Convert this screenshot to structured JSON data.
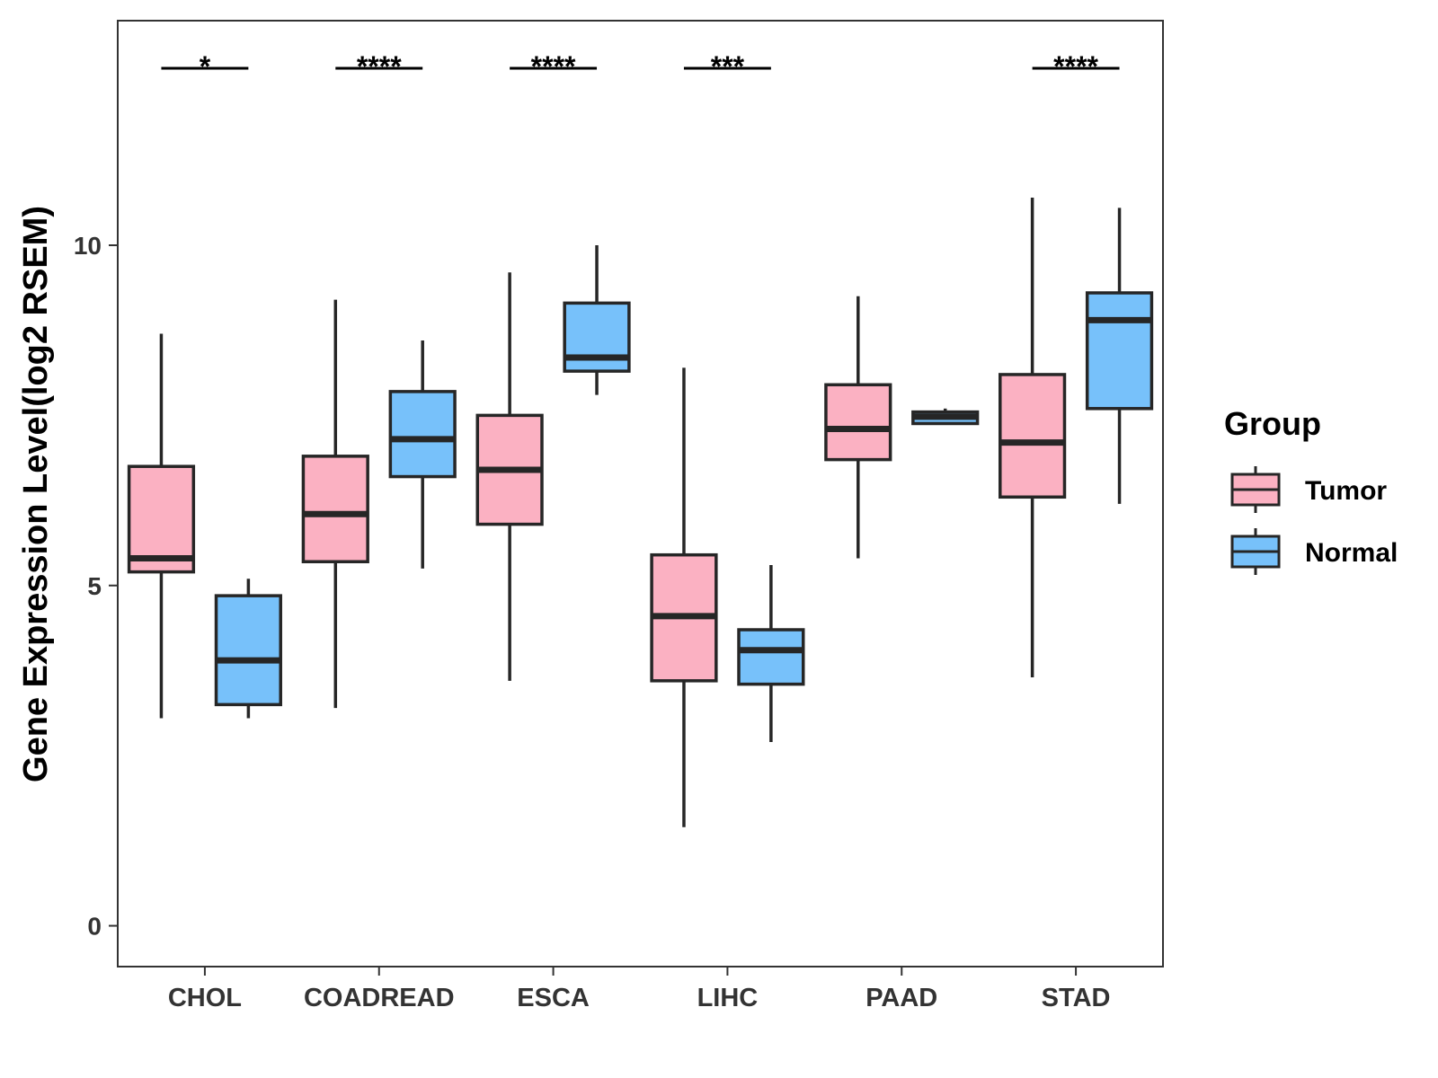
{
  "chart_data": {
    "type": "boxplot",
    "title": "",
    "xlabel": "",
    "ylabel": "Gene Expression Level(log2 RSEM)",
    "ylim": [
      -0.6,
      13.3
    ],
    "yticks": [
      0,
      5,
      10
    ],
    "grid": false,
    "legend": {
      "title": "Group",
      "placement": "right",
      "entries": [
        "Tumor",
        "Normal"
      ]
    },
    "colors": {
      "Tumor": "#FBB1C2",
      "Normal": "#77C1FA",
      "stroke": "#262626"
    },
    "categories": [
      "CHOL",
      "COADREAD",
      "ESCA",
      "LIHC",
      "PAAD",
      "STAD"
    ],
    "series": [
      {
        "name": "Tumor",
        "boxes": [
          {
            "category": "CHOL",
            "whisker_low": 3.05,
            "q1": 5.2,
            "median": 5.4,
            "q3": 6.75,
            "whisker_high": 8.7
          },
          {
            "category": "COADREAD",
            "whisker_low": 3.2,
            "q1": 5.35,
            "median": 6.05,
            "q3": 6.9,
            "whisker_high": 9.2
          },
          {
            "category": "ESCA",
            "whisker_low": 3.6,
            "q1": 5.9,
            "median": 6.7,
            "q3": 7.5,
            "whisker_high": 9.6
          },
          {
            "category": "LIHC",
            "whisker_low": 1.45,
            "q1": 3.6,
            "median": 4.55,
            "q3": 5.45,
            "whisker_high": 8.2
          },
          {
            "category": "PAAD",
            "whisker_low": 5.4,
            "q1": 6.85,
            "median": 7.3,
            "q3": 7.95,
            "whisker_high": 9.25
          },
          {
            "category": "STAD",
            "whisker_low": 3.65,
            "q1": 6.3,
            "median": 7.1,
            "q3": 8.1,
            "whisker_high": 10.7
          }
        ]
      },
      {
        "name": "Normal",
        "boxes": [
          {
            "category": "CHOL",
            "whisker_low": 3.05,
            "q1": 3.25,
            "median": 3.9,
            "q3": 4.85,
            "whisker_high": 5.1
          },
          {
            "category": "COADREAD",
            "whisker_low": 5.25,
            "q1": 6.6,
            "median": 7.15,
            "q3": 7.85,
            "whisker_high": 8.6
          },
          {
            "category": "ESCA",
            "whisker_low": 7.8,
            "q1": 8.15,
            "median": 8.35,
            "q3": 9.15,
            "whisker_high": 10.0
          },
          {
            "category": "LIHC",
            "whisker_low": 2.7,
            "q1": 3.55,
            "median": 4.05,
            "q3": 4.35,
            "whisker_high": 5.3
          },
          {
            "category": "PAAD",
            "whisker_low": 7.38,
            "q1": 7.38,
            "median": 7.48,
            "q3": 7.55,
            "whisker_high": 7.6
          },
          {
            "category": "STAD",
            "whisker_low": 6.2,
            "q1": 7.6,
            "median": 8.9,
            "q3": 9.3,
            "whisker_high": 10.55
          }
        ]
      }
    ],
    "significance": [
      {
        "category": "CHOL",
        "label": "*"
      },
      {
        "category": "COADREAD",
        "label": "****"
      },
      {
        "category": "ESCA",
        "label": "****"
      },
      {
        "category": "LIHC",
        "label": "***"
      },
      {
        "category": "PAAD",
        "label": ""
      },
      {
        "category": "STAD",
        "label": "****"
      }
    ],
    "significance_y": 12.6
  }
}
